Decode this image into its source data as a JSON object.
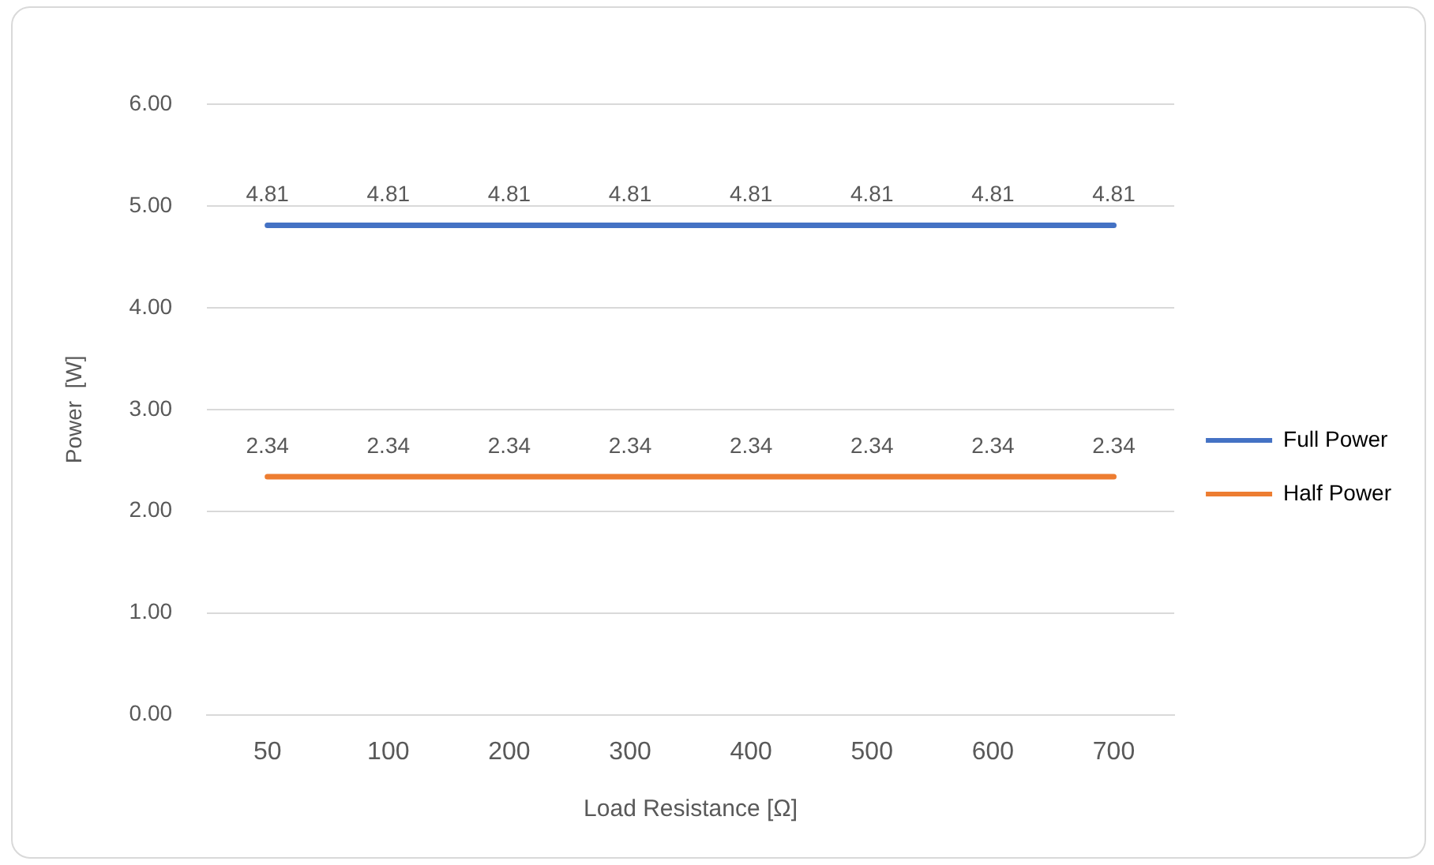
{
  "chart_data": {
    "type": "line",
    "xlabel": "Load Resistance [Ω]",
    "ylabel": "Power  [W]",
    "categories": [
      "50",
      "100",
      "200",
      "300",
      "400",
      "500",
      "600",
      "700"
    ],
    "series": [
      {
        "name": "Full Power",
        "color": "#4472c4",
        "values": [
          4.81,
          4.81,
          4.81,
          4.81,
          4.81,
          4.81,
          4.81,
          4.81
        ]
      },
      {
        "name": "Half Power",
        "color": "#ed7d31",
        "values": [
          2.34,
          2.34,
          2.34,
          2.34,
          2.34,
          2.34,
          2.34,
          2.34
        ]
      }
    ],
    "ylim": [
      0,
      6
    ],
    "yticks": [
      {
        "value": 0,
        "label": "0.00"
      },
      {
        "value": 1,
        "label": "1.00"
      },
      {
        "value": 2,
        "label": "2.00"
      },
      {
        "value": 3,
        "label": "3.00"
      },
      {
        "value": 4,
        "label": "4.00"
      },
      {
        "value": 5,
        "label": "5.00"
      },
      {
        "value": 6,
        "label": "6.00"
      }
    ],
    "grid": "y",
    "legend": "right",
    "marker": "none",
    "line_style": "solid",
    "data_labels": true
  }
}
